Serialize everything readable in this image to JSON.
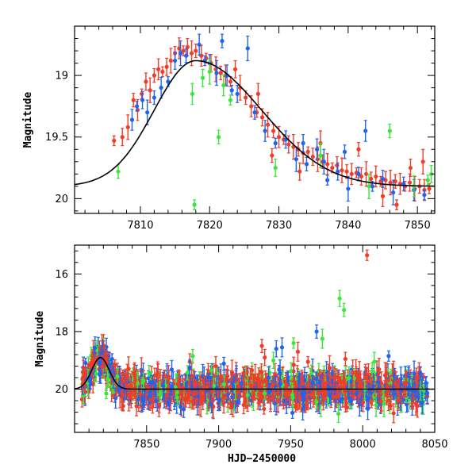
{
  "chart_data": [
    {
      "type": "scatter",
      "xlabel": "",
      "ylabel": "Magnitude",
      "xlim": [
        7800.5,
        7852.5
      ],
      "ylim": [
        20.12,
        18.6
      ],
      "y_inverted": true,
      "x_ticks": [
        7810,
        7820,
        7830,
        7840,
        7850
      ],
      "x_tick_labels": [
        "7810",
        "7820",
        "7830",
        "7840",
        "7850"
      ],
      "y_ticks": [
        19,
        19.5,
        20
      ],
      "y_tick_labels": [
        "19",
        "19.5",
        "20"
      ],
      "grid": false,
      "legend": "none",
      "series": [
        {
          "color": "#f03c28",
          "points": [
            [
              7806.2,
              19.53
            ],
            [
              7807.4,
              19.5
            ],
            [
              7808.2,
              19.42
            ],
            [
              7809.0,
              19.2
            ],
            [
              7809.6,
              19.28
            ],
            [
              7810.2,
              19.15
            ],
            [
              7810.8,
              19.05
            ],
            [
              7811.4,
              19.12
            ],
            [
              7812.0,
              19.0
            ],
            [
              7812.6,
              18.95
            ],
            [
              7813.2,
              18.97
            ],
            [
              7813.8,
              18.93
            ],
            [
              7814.4,
              18.88
            ],
            [
              7815.0,
              18.82
            ],
            [
              7815.6,
              18.78
            ],
            [
              7816.2,
              18.8
            ],
            [
              7816.8,
              18.77
            ],
            [
              7817.4,
              18.82
            ],
            [
              7818.0,
              18.8
            ],
            [
              7818.8,
              18.84
            ],
            [
              7819.5,
              18.86
            ],
            [
              7820.2,
              18.9
            ],
            [
              7820.9,
              18.95
            ],
            [
              7821.6,
              18.98
            ],
            [
              7822.3,
              19.0
            ],
            [
              7823.0,
              19.05
            ],
            [
              7823.7,
              18.95
            ],
            [
              7824.4,
              19.1
            ],
            [
              7825.2,
              19.18
            ],
            [
              7826.0,
              19.25
            ],
            [
              7826.8,
              19.3
            ],
            [
              7827.6,
              19.34
            ],
            [
              7828.4,
              19.4
            ],
            [
              7829.2,
              19.45
            ],
            [
              7830.0,
              19.5
            ],
            [
              7830.7,
              19.52
            ],
            [
              7831.4,
              19.56
            ],
            [
              7832.1,
              19.58
            ],
            [
              7832.8,
              19.6
            ],
            [
              7833.5,
              19.63
            ],
            [
              7834.2,
              19.62
            ],
            [
              7834.9,
              19.66
            ],
            [
              7835.6,
              19.68
            ],
            [
              7836.3,
              19.7
            ],
            [
              7837.0,
              19.72
            ],
            [
              7837.7,
              19.75
            ],
            [
              7838.4,
              19.73
            ],
            [
              7839.1,
              19.77
            ],
            [
              7839.8,
              19.78
            ],
            [
              7840.5,
              19.8
            ],
            [
              7841.2,
              19.79
            ],
            [
              7841.9,
              19.82
            ],
            [
              7842.6,
              19.8
            ],
            [
              7843.3,
              19.84
            ],
            [
              7844.0,
              19.82
            ],
            [
              7844.7,
              19.86
            ],
            [
              7845.4,
              19.85
            ],
            [
              7846.1,
              19.87
            ],
            [
              7846.8,
              19.86
            ],
            [
              7847.5,
              19.88
            ],
            [
              7848.2,
              19.9
            ],
            [
              7848.9,
              19.87
            ],
            [
              7849.6,
              19.92
            ],
            [
              7850.3,
              19.9
            ],
            [
              7851.0,
              19.93
            ],
            [
              7851.7,
              19.92
            ],
            [
              7833.0,
              19.78
            ],
            [
              7836.0,
              19.55
            ],
            [
              7841.5,
              19.6
            ],
            [
              7845.0,
              19.98
            ],
            [
              7847.0,
              20.05
            ],
            [
              7849.0,
              19.75
            ],
            [
              7850.8,
              19.7
            ],
            [
              7829.0,
              19.65
            ],
            [
              7827.0,
              19.15
            ]
          ]
        },
        {
          "color": "#1e64f0",
          "points": [
            [
              7808.8,
              19.36
            ],
            [
              7809.5,
              19.25
            ],
            [
              7810.3,
              19.2
            ],
            [
              7811.0,
              19.3
            ],
            [
              7812.0,
              19.18
            ],
            [
              7813.0,
              19.1
            ],
            [
              7814.0,
              19.05
            ],
            [
              7815.0,
              18.88
            ],
            [
              7815.8,
              18.82
            ],
            [
              7816.6,
              18.84
            ],
            [
              7818.5,
              18.75
            ],
            [
              7819.3,
              18.88
            ],
            [
              7820.0,
              18.9
            ],
            [
              7821.0,
              18.98
            ],
            [
              7821.8,
              18.72
            ],
            [
              7822.5,
              19.0
            ],
            [
              7823.2,
              19.12
            ],
            [
              7824.0,
              19.15
            ],
            [
              7825.5,
              18.78
            ],
            [
              7826.5,
              19.3
            ],
            [
              7828.0,
              19.45
            ],
            [
              7829.5,
              19.55
            ],
            [
              7831.0,
              19.52
            ],
            [
              7832.5,
              19.68
            ],
            [
              7834.0,
              19.72
            ],
            [
              7835.5,
              19.6
            ],
            [
              7837.0,
              19.85
            ],
            [
              7838.5,
              19.78
            ],
            [
              7840.0,
              19.92
            ],
            [
              7841.5,
              19.8
            ],
            [
              7842.5,
              19.45
            ],
            [
              7843.5,
              19.9
            ],
            [
              7845.0,
              19.84
            ],
            [
              7846.5,
              19.95
            ],
            [
              7848.0,
              19.88
            ],
            [
              7849.5,
              19.93
            ],
            [
              7851.0,
              19.97
            ],
            [
              7833.5,
              19.55
            ],
            [
              7836.5,
              19.7
            ],
            [
              7839.5,
              19.62
            ]
          ]
        },
        {
          "color": "#3ce63c",
          "points": [
            [
              7806.8,
              19.78
            ],
            [
              7817.5,
              19.15
            ],
            [
              7817.8,
              20.05
            ],
            [
              7819.0,
              19.02
            ],
            [
              7820.0,
              18.97
            ],
            [
              7821.3,
              19.5
            ],
            [
              7822.0,
              19.08
            ],
            [
              7823.0,
              19.2
            ],
            [
              7829.5,
              19.75
            ],
            [
              7836.0,
              19.65
            ],
            [
              7846.0,
              19.45
            ],
            [
              7849.5,
              19.9
            ],
            [
              7851.5,
              19.85
            ],
            [
              7852.0,
              19.8
            ],
            [
              7843.0,
              19.9
            ]
          ]
        }
      ],
      "model_curve": "peaked light-curve fit, maximum ~18.88 mag near 7818"
    },
    {
      "type": "scatter",
      "xlabel": "HJD−2450000",
      "ylabel": "Magnitude",
      "xlim": [
        7800,
        8050
      ],
      "ylim": [
        21.5,
        15.0
      ],
      "y_inverted": true,
      "x_ticks": [
        7850,
        7900,
        7950,
        8000,
        8050
      ],
      "x_tick_labels": [
        "7850",
        "7900",
        "7950",
        "8000",
        "8050"
      ],
      "y_ticks": [
        16,
        18,
        20
      ],
      "y_tick_labels": [
        "16",
        "18",
        "20"
      ],
      "grid": false,
      "legend": "none",
      "series": [
        {
          "color": "#f03c28",
          "points": [
            [
              8003,
              15.35
            ],
            [
              7930,
              18.5
            ],
            [
              7932,
              18.9
            ],
            [
              7955,
              18.7
            ],
            [
              7962,
              19.05
            ],
            [
              7988,
              18.95
            ],
            [
              7880,
              19.05
            ],
            [
              7898,
              19.2
            ]
          ]
        },
        {
          "color": "#1e64f0",
          "points": [
            [
              7826,
              18.95
            ],
            [
              7968,
              18.0
            ],
            [
              7940,
              18.6
            ],
            [
              7944,
              18.55
            ],
            [
              8018,
              18.85
            ],
            [
              8040,
              19.45
            ],
            [
              7880,
              19.25
            ]
          ]
        },
        {
          "color": "#3ce63c",
          "points": [
            [
              7822,
              20.15
            ],
            [
              7987,
              17.25
            ],
            [
              7984,
              16.85
            ],
            [
              7972,
              18.25
            ],
            [
              7952,
              18.4
            ],
            [
              7882,
              18.85
            ],
            [
              7938,
              19.0
            ],
            [
              8008,
              19.05
            ],
            [
              7895,
              19.35
            ]
          ]
        }
      ],
      "baseline_magnitude": 20.0,
      "model_curve": "peak ~18.9 mag near 7818, flat baseline ~20.0 mag afterwards"
    }
  ]
}
